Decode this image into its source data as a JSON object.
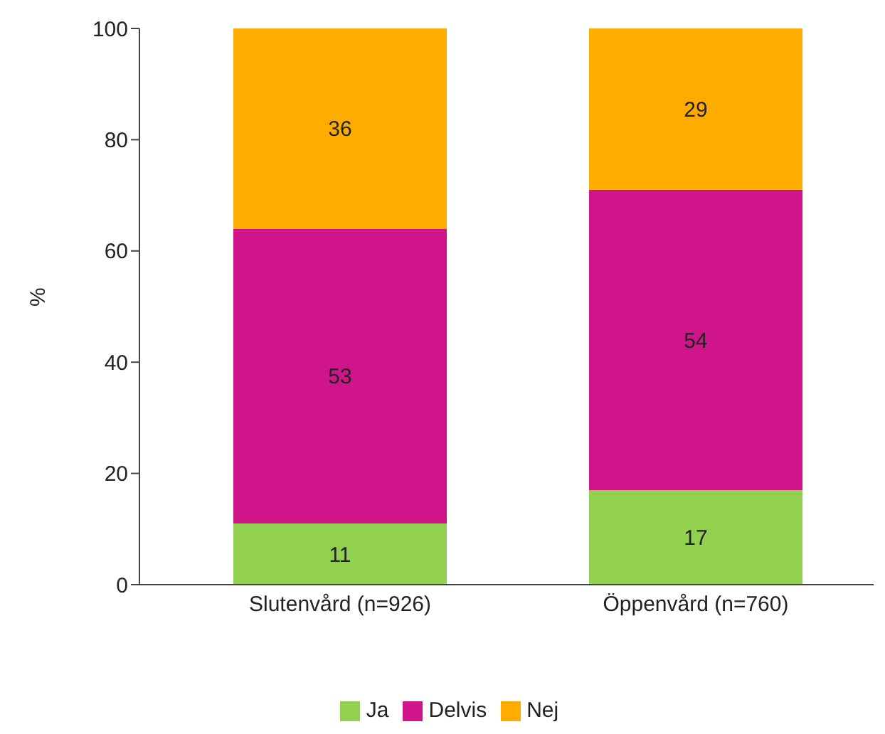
{
  "chart_data": {
    "type": "bar",
    "stacked": true,
    "ylabel": "%",
    "categories": [
      "Slutenvård (n=926)",
      "Öppenvård (n=760)"
    ],
    "series": [
      {
        "name": "Ja",
        "color": "#92d050",
        "values": [
          11,
          17
        ]
      },
      {
        "name": "Delvis",
        "color": "#d0158a",
        "values": [
          53,
          54
        ]
      },
      {
        "name": "Nej",
        "color": "#ffac00",
        "values": [
          36,
          29
        ]
      }
    ],
    "ylim": [
      0,
      100
    ],
    "yticks": [
      0,
      20,
      40,
      60,
      80,
      100
    ],
    "grid": false,
    "legend": "bottom",
    "data_labels": true
  }
}
